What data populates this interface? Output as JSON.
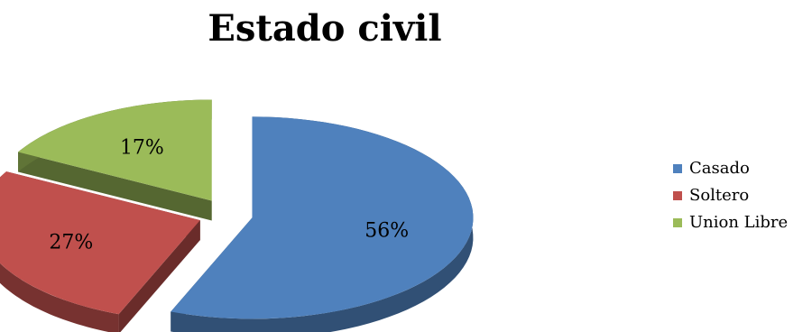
{
  "chart_data": {
    "type": "pie",
    "title": "Estado civil",
    "categories": [
      "Casado",
      "Soltero",
      "Union Libre"
    ],
    "values": [
      56,
      27,
      17
    ],
    "labels": [
      "56%",
      "27%",
      "17%"
    ],
    "colors": [
      "#4F81BD",
      "#C0504D",
      "#9BBB59"
    ],
    "legend_position": "right",
    "style": "3d-exploded"
  }
}
